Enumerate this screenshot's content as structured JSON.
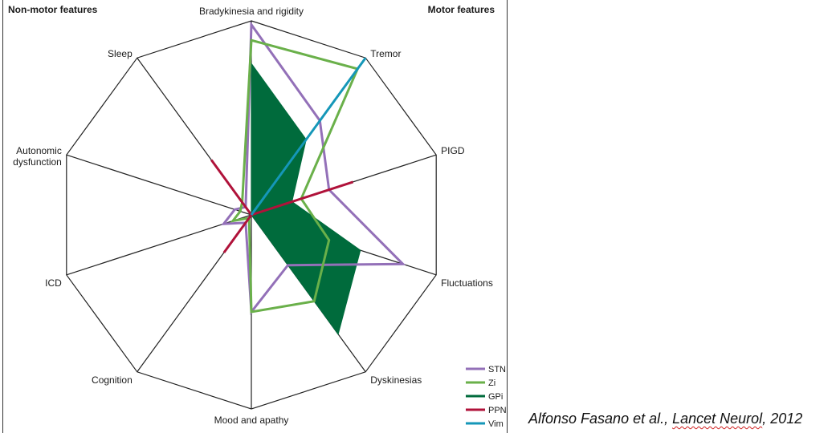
{
  "headers": {
    "non_motor": "Non-motor features",
    "motor": "Motor features"
  },
  "citation": {
    "prefix": "Alfonso Fasano et al., ",
    "journal": "Lancet Neurol",
    "suffix": ", 2012"
  },
  "chart_data": {
    "type": "radar",
    "axes": [
      "Bradykinesia and rigidity",
      "Tremor",
      "PIGD",
      "Fluctuations",
      "Dyskinesias",
      "Mood and apathy",
      "Cognition",
      "ICD",
      "Autonomic dysfunction",
      "Sleep"
    ],
    "range": [
      0,
      1
    ],
    "grid_lines": "spokes and outer polygon",
    "series": [
      {
        "name": "STN",
        "color": "#9370b8",
        "fill": false,
        "values": [
          0.98,
          0.6,
          0.42,
          0.82,
          0.32,
          0.5,
          0.05,
          0.15,
          0.09,
          0.05
        ]
      },
      {
        "name": "Zi",
        "color": "#6ab04a",
        "fill": false,
        "values": [
          0.9,
          0.93,
          0.27,
          0.42,
          0.55,
          0.5,
          0.02,
          0.1,
          0.06,
          0.08
        ]
      },
      {
        "name": "GPi",
        "color": "#006b3c",
        "fill": true,
        "values": [
          0.78,
          0.48,
          0.22,
          0.59,
          0.76,
          0.0,
          0.0,
          0.0,
          0.0,
          0.0
        ]
      },
      {
        "name": "PPN",
        "color": "#b0123a",
        "fill": false,
        "values": [
          0.0,
          0.0,
          0.55,
          0.0,
          0.0,
          0.0,
          0.24,
          0.0,
          0.0,
          0.35
        ]
      },
      {
        "name": "Vim",
        "color": "#1597b8",
        "fill": false,
        "values": [
          0.0,
          1.0,
          0.0,
          0.0,
          0.0,
          0.0,
          0.0,
          0.0,
          0.0,
          0.0
        ]
      }
    ],
    "legend": {
      "position": "bottom-right"
    },
    "axis_labels_display": [
      [
        "Bradykinesia and rigidity"
      ],
      [
        "Tremor"
      ],
      [
        "PIGD"
      ],
      [
        "Fluctuations"
      ],
      [
        "Dyskinesias"
      ],
      [
        "Mood and apathy"
      ],
      [
        "Cognition"
      ],
      [
        "ICD"
      ],
      [
        "Autonomic",
        "dysfunction"
      ],
      [
        "Sleep"
      ]
    ]
  }
}
